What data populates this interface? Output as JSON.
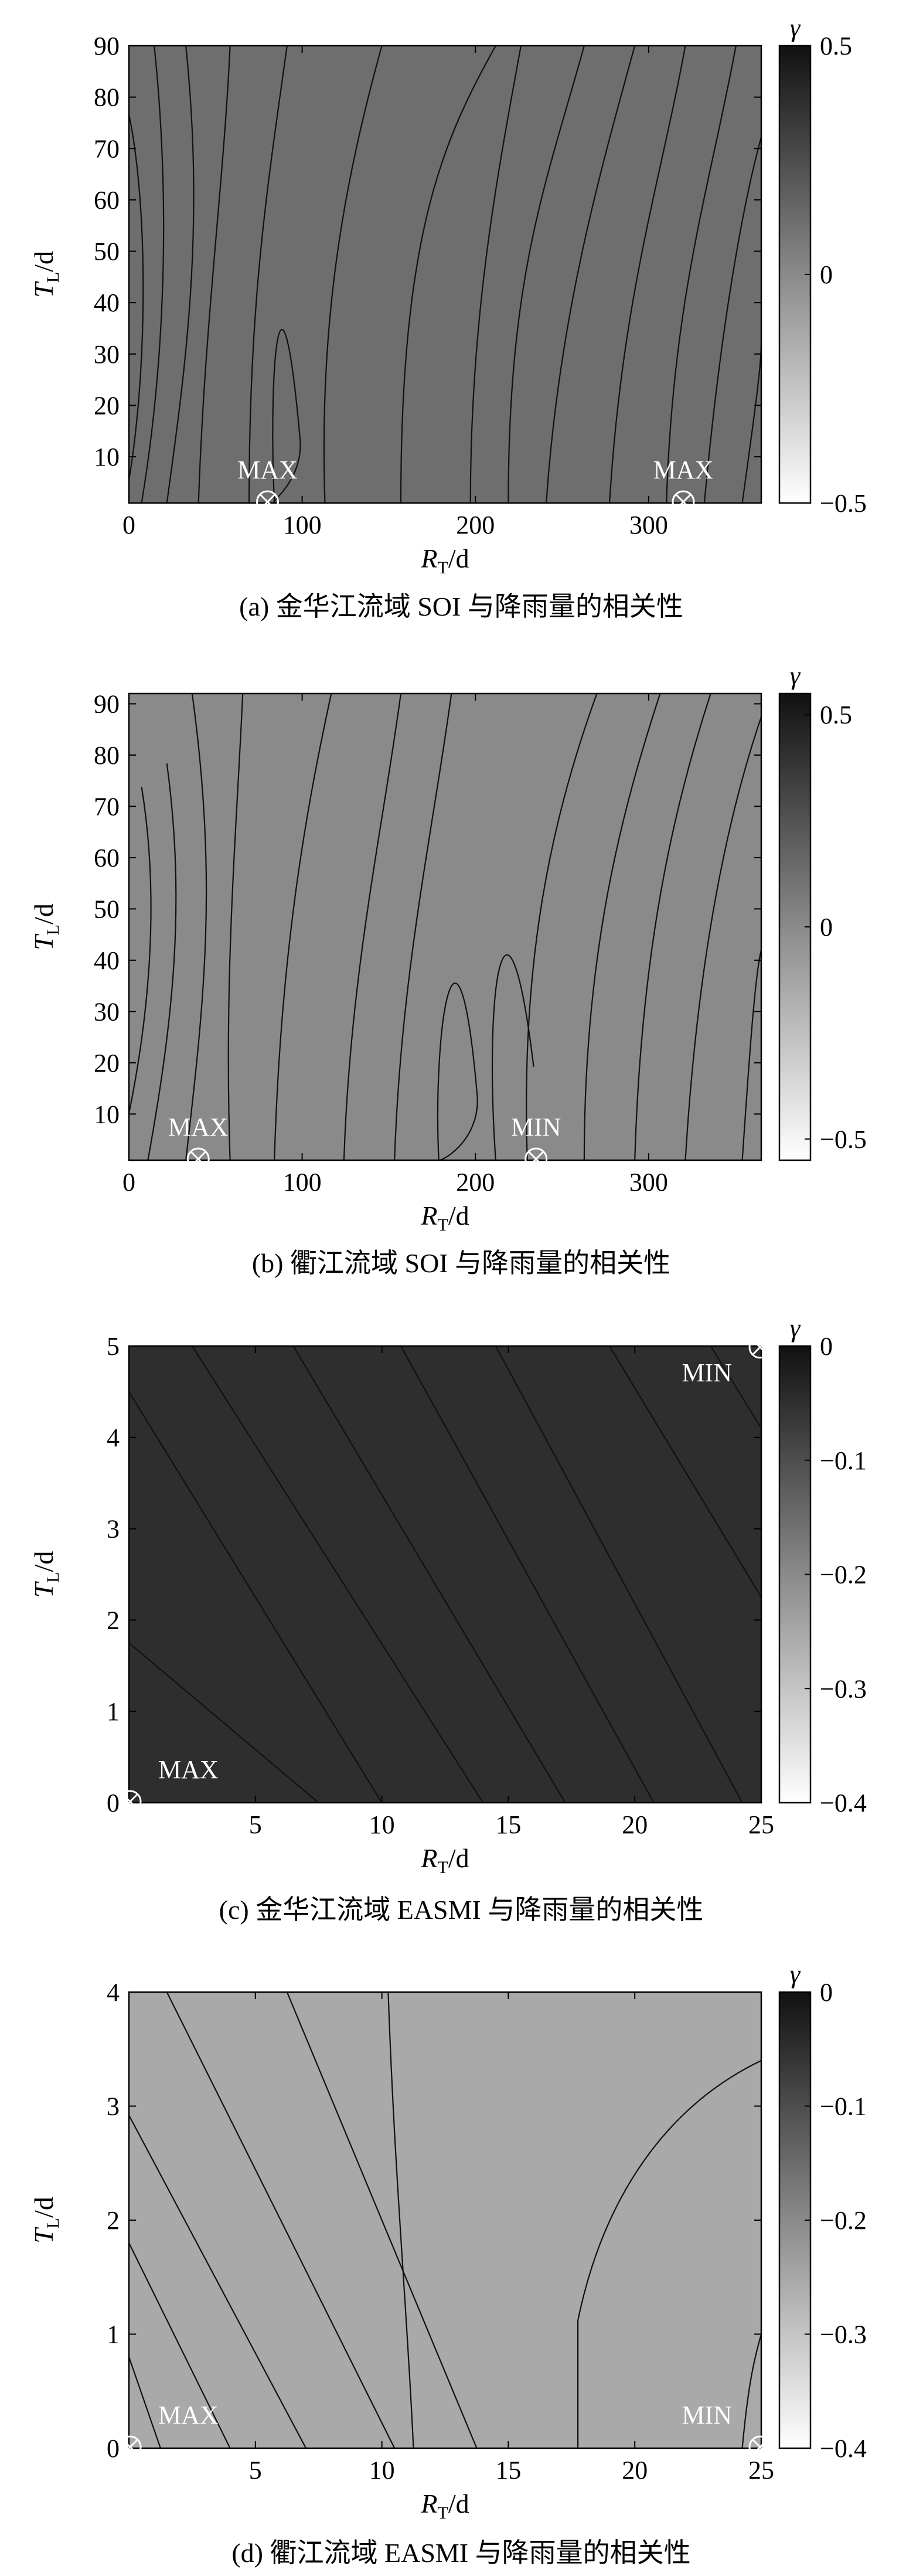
{
  "chart_data": [
    {
      "type": "heatmap",
      "caption": "(a) 金华江流域 SOI 与降雨量的相关性",
      "xlabel_main": "R",
      "xlabel_sub": "T",
      "xlabel_unit": "/d",
      "ylabel_main": "T",
      "ylabel_sub": "L",
      "ylabel_unit": "/d",
      "xlim": [
        0,
        365
      ],
      "ylim": [
        1,
        90
      ],
      "x_ticks": [
        0,
        100,
        200,
        300
      ],
      "y_ticks": [
        10,
        20,
        30,
        40,
        50,
        60,
        70,
        80,
        90
      ],
      "colorbar": {
        "label": "γ",
        "min": -0.5,
        "max": 0.5,
        "ticks": [
          "0.5",
          "0",
          "−0.5"
        ]
      },
      "fill_color": "#6e6e6e",
      "markers": [
        {
          "label": "MAX",
          "x": 80,
          "y": 1
        },
        {
          "label": "MAX",
          "x": 320,
          "y": 1
        }
      ]
    },
    {
      "type": "heatmap",
      "caption": "(b) 衢江流域 SOI 与降雨量的相关性",
      "xlabel_main": "R",
      "xlabel_sub": "T",
      "xlabel_unit": "/d",
      "ylabel_main": "T",
      "ylabel_sub": "L",
      "ylabel_unit": "/d",
      "xlim": [
        0,
        365
      ],
      "ylim": [
        1,
        92
      ],
      "x_ticks": [
        0,
        100,
        200,
        300
      ],
      "y_ticks": [
        10,
        20,
        30,
        40,
        50,
        60,
        70,
        80,
        90
      ],
      "colorbar": {
        "label": "γ",
        "min": -0.55,
        "max": 0.55,
        "ticks": [
          "0.5",
          "0",
          "−0.5"
        ]
      },
      "fill_color": "#8a8a8a",
      "markers": [
        {
          "label": "MAX",
          "x": 40,
          "y": 1
        },
        {
          "label": "MIN",
          "x": 235,
          "y": 1
        }
      ]
    },
    {
      "type": "heatmap",
      "caption": "(c) 金华江流域 EASMI 与降雨量的相关性",
      "xlabel_main": "R",
      "xlabel_sub": "T",
      "xlabel_unit": "/d",
      "ylabel_main": "T",
      "ylabel_sub": "L",
      "ylabel_unit": "/d",
      "xlim": [
        0,
        25
      ],
      "ylim": [
        0,
        5
      ],
      "x_ticks": [
        5,
        10,
        15,
        20,
        25
      ],
      "y_ticks": [
        0,
        1,
        2,
        3,
        4,
        5
      ],
      "colorbar": {
        "label": "γ",
        "min": -0.4,
        "max": 0,
        "ticks": [
          "0",
          "−0.1",
          "−0.2",
          "−0.3",
          "−0.4"
        ]
      },
      "fill_color": "#2e2e2e",
      "markers": [
        {
          "label": "MAX",
          "x": 0,
          "y": 0
        },
        {
          "label": "MIN",
          "x": 25,
          "y": 5
        }
      ]
    },
    {
      "type": "heatmap",
      "caption": "(d) 衢江流域 EASMI 与降雨量的相关性",
      "xlabel_main": "R",
      "xlabel_sub": "T",
      "xlabel_unit": "/d",
      "ylabel_main": "T",
      "ylabel_sub": "L",
      "ylabel_unit": "/d",
      "xlim": [
        0,
        25
      ],
      "ylim": [
        0,
        4
      ],
      "x_ticks": [
        5,
        10,
        15,
        20,
        25
      ],
      "y_ticks": [
        0,
        1,
        2,
        3,
        4
      ],
      "colorbar": {
        "label": "γ",
        "min": -0.4,
        "max": 0,
        "ticks": [
          "0",
          "−0.1",
          "−0.2",
          "−0.3",
          "−0.4"
        ]
      },
      "fill_color": "#a9a9a9",
      "markers": [
        {
          "label": "MAX",
          "x": 0,
          "y": 0
        },
        {
          "label": "MIN",
          "x": 25,
          "y": 0
        }
      ]
    }
  ]
}
